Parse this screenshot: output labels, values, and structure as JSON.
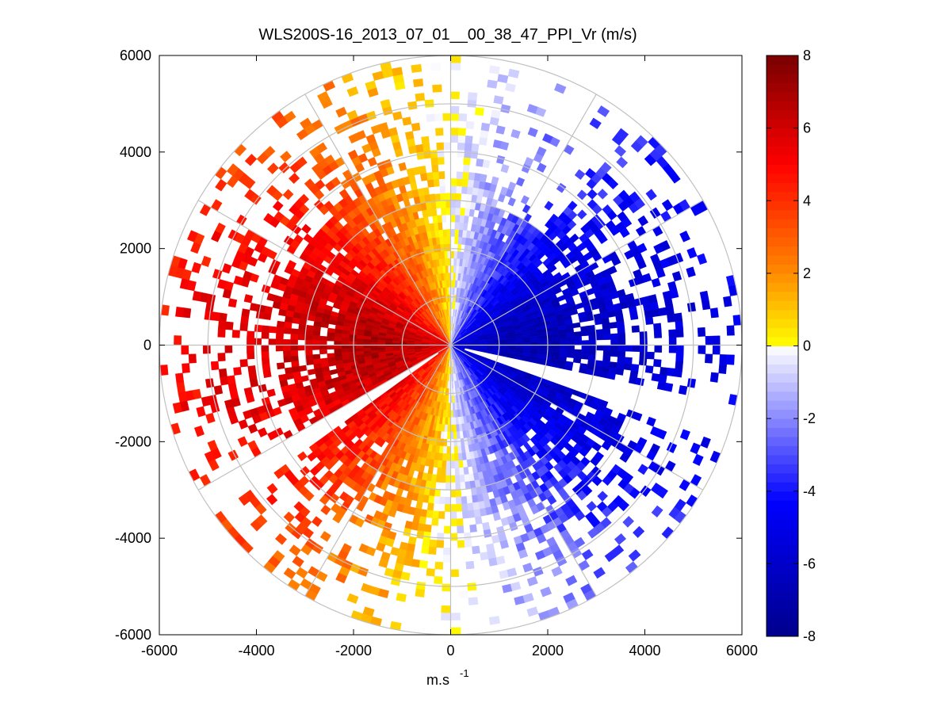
{
  "chart_data": {
    "type": "heatmap",
    "subtype": "polar-ppi",
    "title": "WLS200S-16_2013_07_01__00_38_47_PPI_Vr (m/s)",
    "xlabel": "m.s",
    "xlabel_superscript": "-1",
    "ylabel": "",
    "xlim": [
      -6000,
      6000
    ],
    "ylim": [
      -6000,
      6000
    ],
    "xticks": [
      -6000,
      -4000,
      -2000,
      0,
      2000,
      4000,
      6000
    ],
    "yticks": [
      -6000,
      -4000,
      -2000,
      0,
      2000,
      4000,
      6000
    ],
    "xtick_labels": [
      "-6000",
      "-4000",
      "-2000",
      "0",
      "2000",
      "4000",
      "6000"
    ],
    "ytick_labels": [
      "-6000",
      "-4000",
      "-2000",
      "0",
      "2000",
      "4000",
      "6000"
    ],
    "polar_grid": {
      "ring_radii": [
        1000,
        2000,
        3000,
        4000,
        5000,
        6000
      ],
      "spoke_angles_deg": [
        0,
        30,
        60,
        90,
        120,
        150,
        180,
        210,
        240,
        270,
        300,
        330
      ],
      "grid_color": "#c0c0c0"
    },
    "colorbar": {
      "range": [
        -8,
        8
      ],
      "ticks": [
        -8,
        -6,
        -4,
        -2,
        0,
        2,
        4,
        6,
        8
      ],
      "tick_labels": [
        "-8",
        "-6",
        "-4",
        "-2",
        "0",
        "2",
        "4",
        "6",
        "8"
      ],
      "colors": {
        "neg_max": "#00008c",
        "neg_mid": "#0000ff",
        "neg_zero": "#ffffff",
        "pos_zero": "#ffff00",
        "pos_mid": "#ff8000",
        "pos_high": "#ff0000",
        "pos_max": "#780000"
      }
    },
    "field_description_data": {
      "max_range_m": 6000,
      "positive_sector_deg": [
        90,
        270
      ],
      "negative_sector_deg": [
        -90,
        90
      ],
      "data_gap_sectors_deg": [
        [
          -20,
          -13
        ],
        [
          210,
          216
        ]
      ]
    }
  }
}
